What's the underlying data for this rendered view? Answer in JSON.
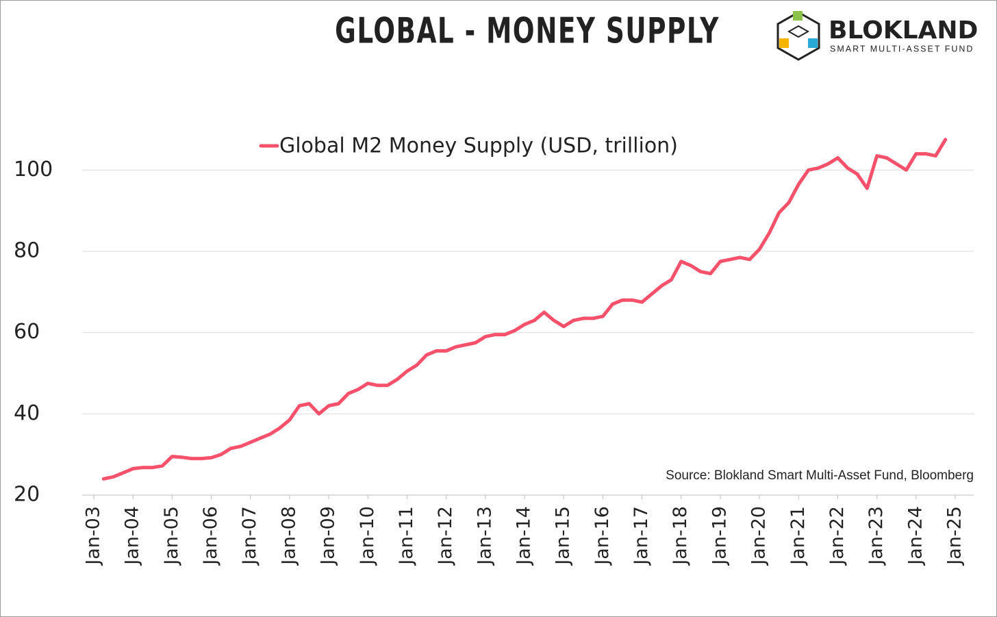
{
  "chart_data": {
    "type": "line",
    "title": "GLOBAL - MONEY SUPPLY",
    "brand": "BLOKLAND",
    "brand_subtitle": "SMART MULTI-ASSET FUND",
    "source": "Source: Blokland Smart Multi-Asset Fund, Bloomberg",
    "x": [
      "2003-04",
      "2003-07",
      "2003-10",
      "2004-01",
      "2004-04",
      "2004-07",
      "2004-10",
      "2005-01",
      "2005-04",
      "2005-07",
      "2005-10",
      "2006-01",
      "2006-04",
      "2006-07",
      "2006-10",
      "2007-01",
      "2007-04",
      "2007-07",
      "2007-10",
      "2008-01",
      "2008-04",
      "2008-07",
      "2008-10",
      "2009-01",
      "2009-04",
      "2009-07",
      "2009-10",
      "2010-01",
      "2010-04",
      "2010-07",
      "2010-10",
      "2011-01",
      "2011-04",
      "2011-07",
      "2011-10",
      "2012-01",
      "2012-04",
      "2012-07",
      "2012-10",
      "2013-01",
      "2013-04",
      "2013-07",
      "2013-10",
      "2014-01",
      "2014-04",
      "2014-07",
      "2014-10",
      "2015-01",
      "2015-04",
      "2015-07",
      "2015-10",
      "2016-01",
      "2016-04",
      "2016-07",
      "2016-10",
      "2017-01",
      "2017-04",
      "2017-07",
      "2017-10",
      "2018-01",
      "2018-04",
      "2018-07",
      "2018-10",
      "2019-01",
      "2019-04",
      "2019-07",
      "2019-10",
      "2020-01",
      "2020-04",
      "2020-07",
      "2020-10",
      "2021-01",
      "2021-04",
      "2021-07",
      "2021-10",
      "2022-01",
      "2022-04",
      "2022-07",
      "2022-10",
      "2023-01",
      "2023-04",
      "2023-07",
      "2023-10",
      "2024-01",
      "2024-04",
      "2024-07",
      "2024-10"
    ],
    "series": [
      {
        "name": "Global M2 Money Supply (USD, trillion)",
        "color": "#f5516b",
        "values": [
          24,
          24.5,
          25.5,
          26.5,
          26.8,
          26.8,
          27.2,
          29.5,
          29.3,
          29,
          29,
          29.2,
          30,
          31.5,
          32,
          33,
          34,
          35,
          36.5,
          38.5,
          42,
          42.5,
          40,
          42,
          42.5,
          45,
          46,
          47.5,
          47,
          47,
          48.5,
          50.5,
          52,
          54.5,
          55.5,
          55.5,
          56.5,
          57,
          57.5,
          59,
          59.5,
          59.5,
          60.5,
          62,
          63,
          65,
          63,
          61.5,
          63,
          63.5,
          63.5,
          64,
          67,
          68,
          68,
          67.5,
          69.5,
          71.5,
          73,
          77.5,
          76.5,
          75,
          74.5,
          77.5,
          78,
          78.5,
          78,
          80.5,
          84.5,
          89.5,
          92,
          96.5,
          100,
          100.5,
          101.5,
          103,
          100.5,
          99,
          95.5,
          103.5,
          103,
          101.5,
          100,
          104,
          104,
          103.5,
          107.5
        ]
      }
    ],
    "xlim": [
      "2003-01",
      "2025-01"
    ],
    "xticks": [
      {
        "value": "2003-01",
        "label": "Jan-03"
      },
      {
        "value": "2004-01",
        "label": "Jan-04"
      },
      {
        "value": "2005-01",
        "label": "Jan-05"
      },
      {
        "value": "2006-01",
        "label": "Jan-06"
      },
      {
        "value": "2007-01",
        "label": "Jan-07"
      },
      {
        "value": "2008-01",
        "label": "Jan-08"
      },
      {
        "value": "2009-01",
        "label": "Jan-09"
      },
      {
        "value": "2010-01",
        "label": "Jan-10"
      },
      {
        "value": "2011-01",
        "label": "Jan-11"
      },
      {
        "value": "2012-01",
        "label": "Jan-12"
      },
      {
        "value": "2013-01",
        "label": "Jan-13"
      },
      {
        "value": "2014-01",
        "label": "Jan-14"
      },
      {
        "value": "2015-01",
        "label": "Jan-15"
      },
      {
        "value": "2016-01",
        "label": "Jan-16"
      },
      {
        "value": "2017-01",
        "label": "Jan-17"
      },
      {
        "value": "2018-01",
        "label": "Jan-18"
      },
      {
        "value": "2019-01",
        "label": "Jan-19"
      },
      {
        "value": "2020-01",
        "label": "Jan-20"
      },
      {
        "value": "2021-01",
        "label": "Jan-21"
      },
      {
        "value": "2022-01",
        "label": "Jan-22"
      },
      {
        "value": "2023-01",
        "label": "Jan-23"
      },
      {
        "value": "2024-01",
        "label": "Jan-24"
      },
      {
        "value": "2025-01",
        "label": "Jan-25"
      }
    ],
    "ylim": [
      20,
      110
    ],
    "yticks": [
      20,
      40,
      60,
      80,
      100
    ],
    "grid": true,
    "legend": "top"
  }
}
